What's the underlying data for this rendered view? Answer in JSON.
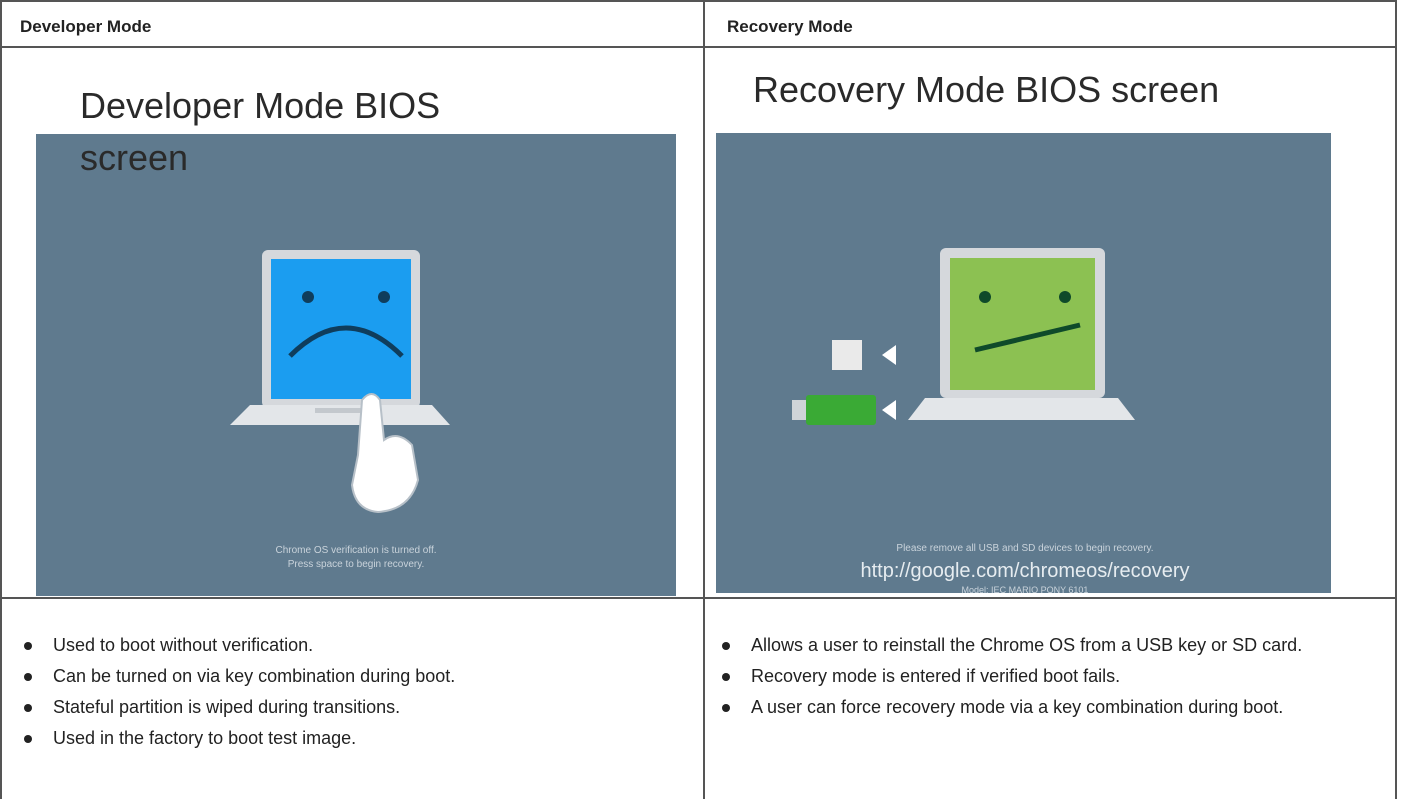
{
  "table": {
    "headers": [
      "Developer Mode",
      "Recovery Mode"
    ],
    "images": [
      {
        "title": "Developer Mode BIOS screen",
        "caption": [
          "Chrome OS verification is turned off.",
          "Press space to begin recovery."
        ]
      },
      {
        "title": "Recovery Mode BIOS screen",
        "caption": [
          "Please remove all USB and SD devices to begin recovery.",
          "http://google.com/chromeos/recovery",
          "Model: IEC MARIO PONY 6101"
        ]
      }
    ],
    "bullets": [
      [
        "Used to boot without verification.",
        "Can be turned on via key combination during boot.",
        "Stateful partition is wiped during transitions.",
        "Used in the factory to boot test image."
      ],
      [
        "Allows a user to reinstall the Chrome OS from a USB key or SD card.",
        "Recovery mode is entered if verified boot fails.",
        "A user can force recovery mode via a key combination during boot."
      ]
    ]
  }
}
